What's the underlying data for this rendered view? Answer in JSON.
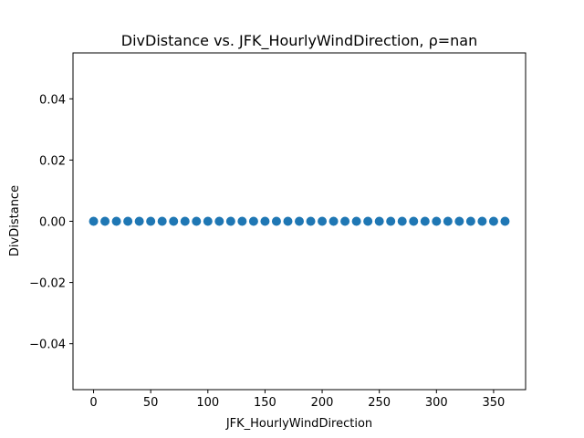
{
  "chart_data": {
    "type": "scatter",
    "title": "DivDistance vs. JFK_HourlyWindDirection, ρ=nan",
    "xlabel": "JFK_HourlyWindDirection",
    "ylabel": "DivDistance",
    "xlim": [
      -18,
      378
    ],
    "ylim": [
      -0.055,
      0.055
    ],
    "xticks": [
      0,
      50,
      100,
      150,
      200,
      250,
      300,
      350
    ],
    "xtick_labels": [
      "0",
      "50",
      "100",
      "150",
      "200",
      "250",
      "300",
      "350"
    ],
    "yticks": [
      -0.04,
      -0.02,
      0.0,
      0.02,
      0.04
    ],
    "ytick_labels": [
      "−0.04",
      "−0.02",
      "0.00",
      "0.02",
      "0.04"
    ],
    "grid": false,
    "marker_color": "#1f77b4",
    "x": [
      0,
      10,
      20,
      30,
      40,
      50,
      60,
      70,
      80,
      90,
      100,
      110,
      120,
      130,
      140,
      150,
      160,
      170,
      180,
      190,
      200,
      210,
      220,
      230,
      240,
      250,
      260,
      270,
      280,
      290,
      300,
      310,
      320,
      330,
      340,
      350,
      360
    ],
    "y": [
      0,
      0,
      0,
      0,
      0,
      0,
      0,
      0,
      0,
      0,
      0,
      0,
      0,
      0,
      0,
      0,
      0,
      0,
      0,
      0,
      0,
      0,
      0,
      0,
      0,
      0,
      0,
      0,
      0,
      0,
      0,
      0,
      0,
      0,
      0,
      0,
      0
    ]
  }
}
